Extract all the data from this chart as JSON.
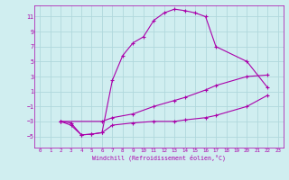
{
  "xlabel": "Windchill (Refroidissement éolien,°C)",
  "xlim": [
    -0.5,
    23.5
  ],
  "ylim": [
    -6.5,
    12.5
  ],
  "yticks": [
    -5,
    -3,
    -1,
    1,
    3,
    5,
    7,
    9,
    11
  ],
  "xticks": [
    0,
    1,
    2,
    3,
    4,
    5,
    6,
    7,
    8,
    9,
    10,
    11,
    12,
    13,
    14,
    15,
    16,
    17,
    18,
    19,
    20,
    21,
    22,
    23
  ],
  "bg_color": "#d0eef0",
  "grid_color": "#b0d8dc",
  "line_color": "#aa00aa",
  "line1_x": [
    2,
    3,
    4,
    5,
    6,
    7,
    8,
    9,
    10,
    11,
    12,
    13,
    14,
    15,
    16,
    17,
    20,
    22
  ],
  "line1_y": [
    -3,
    -3.2,
    -4.8,
    -4.7,
    -4.5,
    2.5,
    5.8,
    7.5,
    8.3,
    10.5,
    11.5,
    12,
    11.8,
    11.5,
    11,
    7,
    5,
    1.5
  ],
  "line2_x": [
    2,
    6,
    7,
    9,
    11,
    13,
    14,
    16,
    17,
    20,
    22
  ],
  "line2_y": [
    -3,
    -3,
    -2.5,
    -2,
    -1,
    -0.2,
    0.2,
    1.2,
    1.8,
    3,
    3.2
  ],
  "line3_x": [
    2,
    3,
    4,
    5,
    6,
    7,
    9,
    11,
    13,
    14,
    16,
    17,
    20,
    22
  ],
  "line3_y": [
    -3,
    -3.5,
    -4.8,
    -4.7,
    -4.5,
    -3.5,
    -3.2,
    -3,
    -3,
    -2.8,
    -2.5,
    -2.2,
    -1,
    0.5
  ]
}
